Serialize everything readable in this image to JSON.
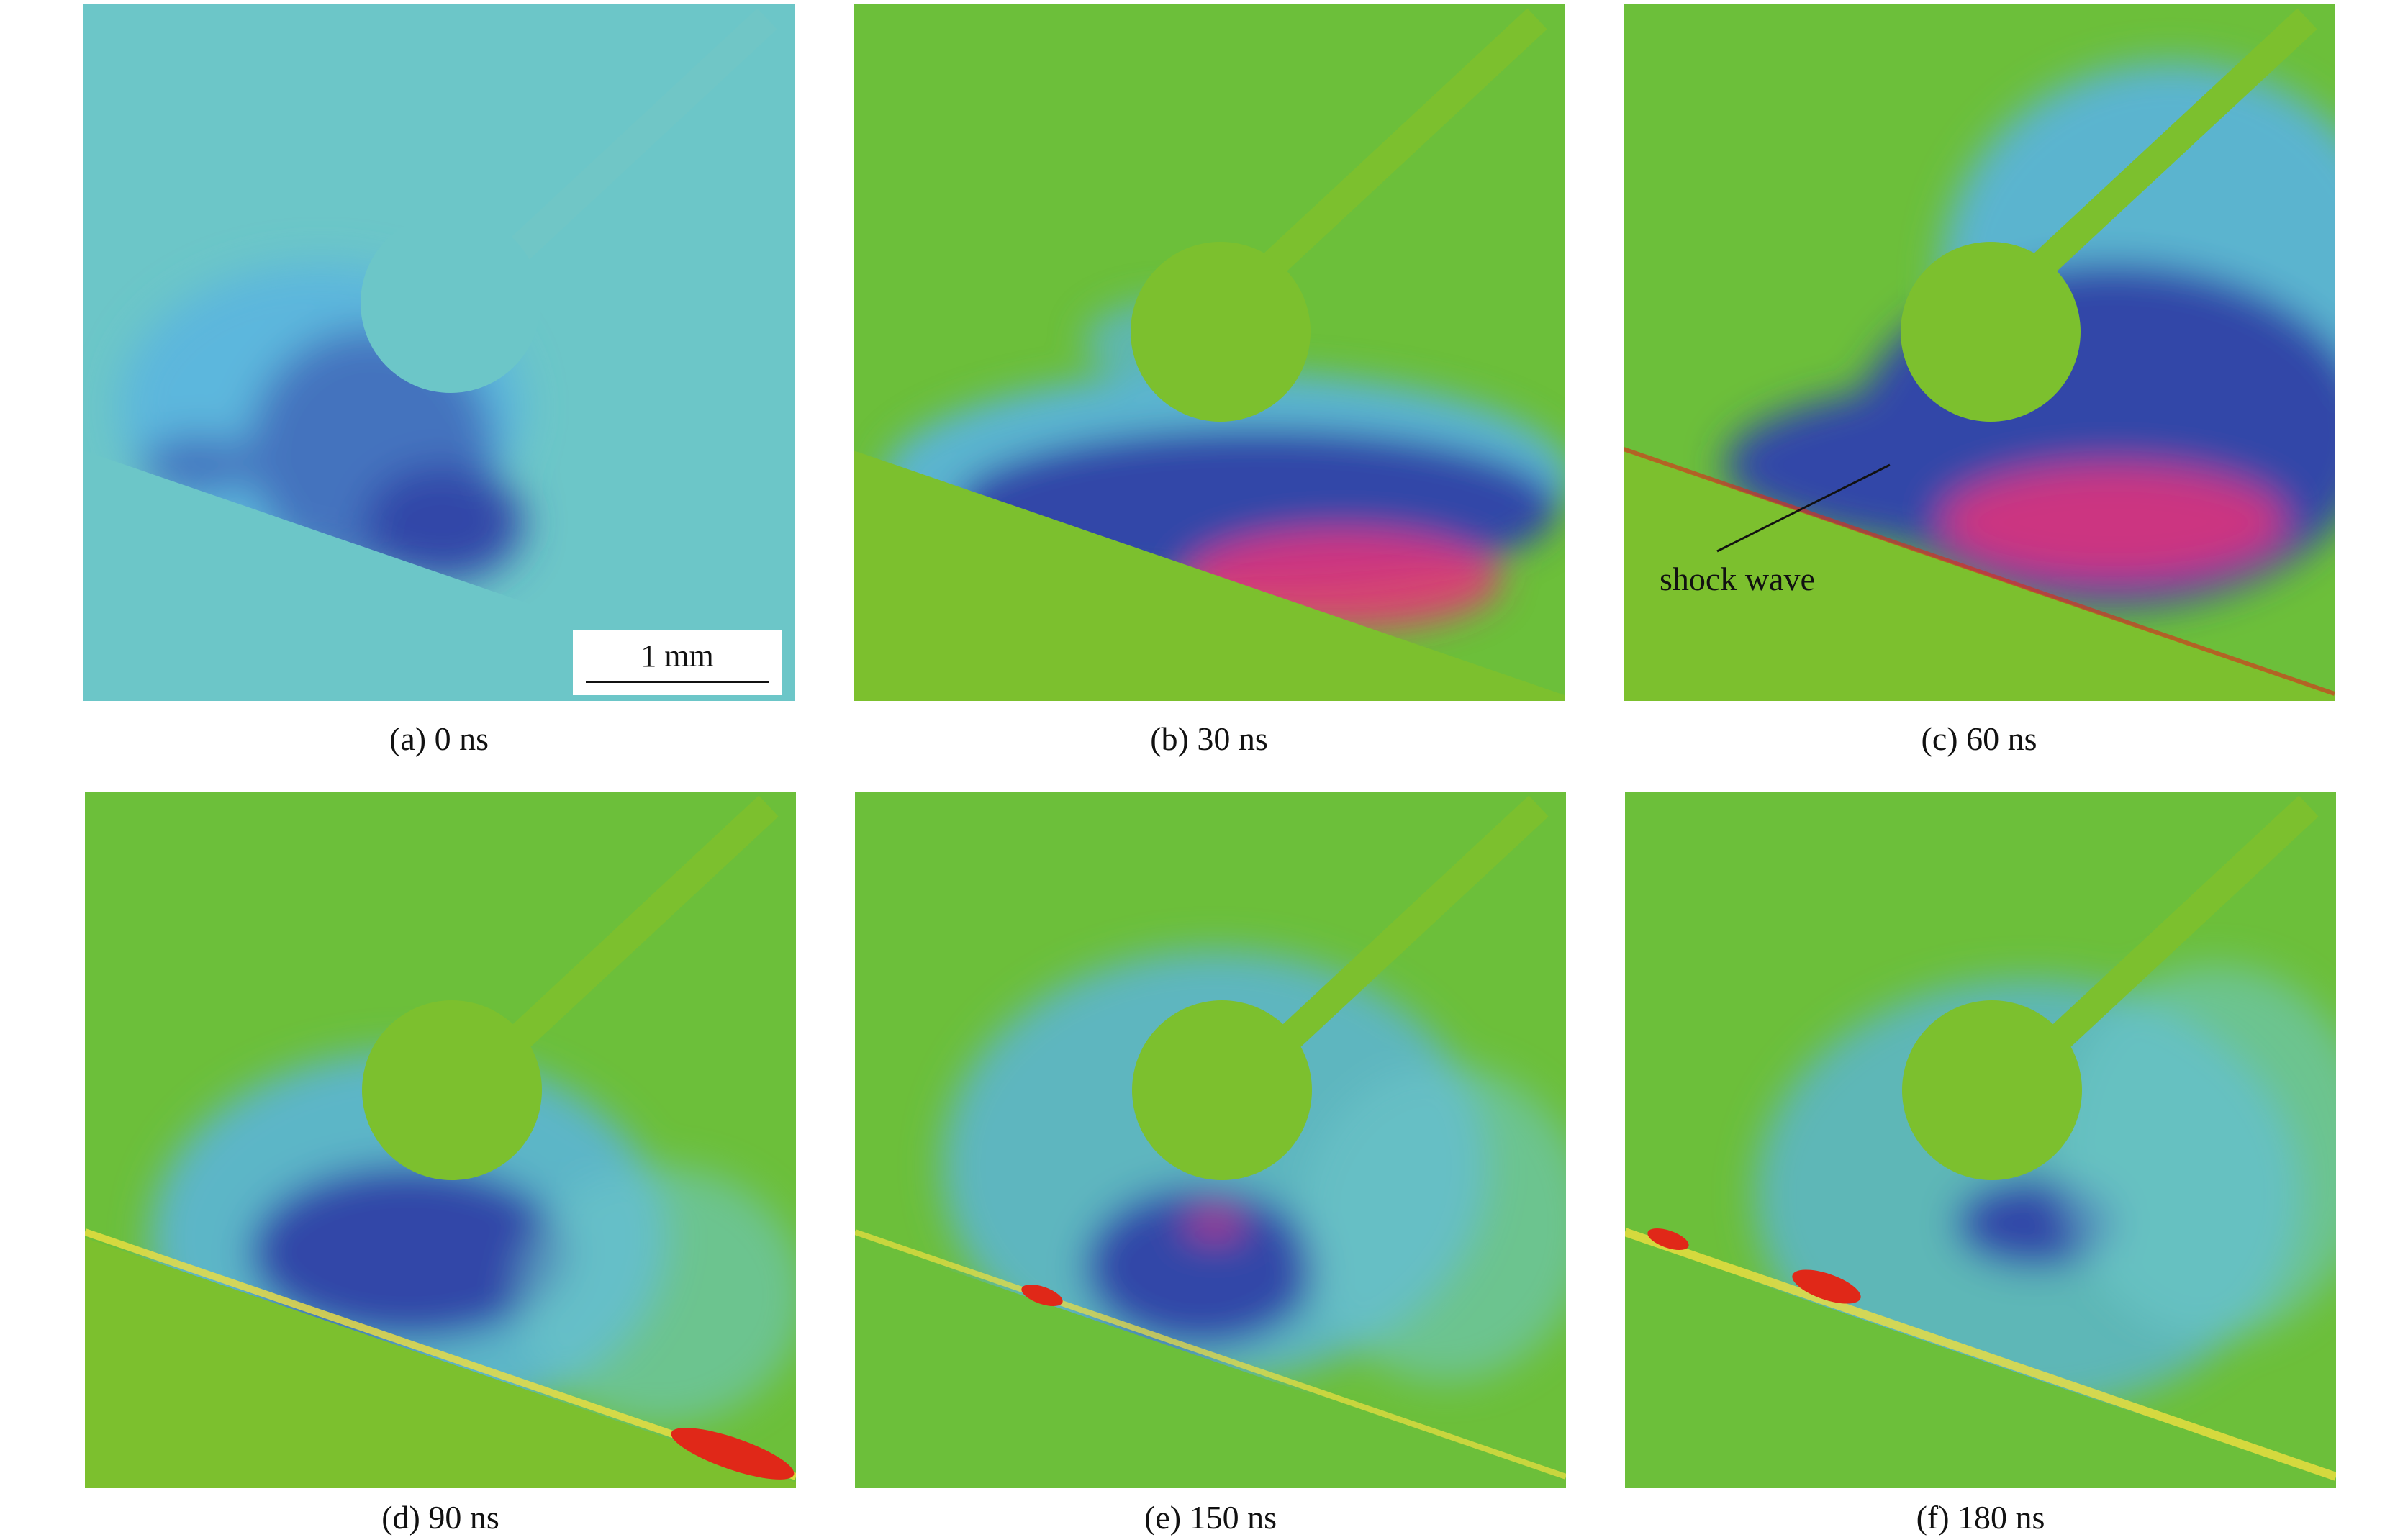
{
  "panels": [
    {
      "caption": "(a) 0 ns"
    },
    {
      "caption": "(b) 30 ns"
    },
    {
      "caption": "(c) 60 ns"
    },
    {
      "caption": "(d) 90 ns"
    },
    {
      "caption": "(e) 150 ns"
    },
    {
      "caption": "(f) 180 ns"
    }
  ],
  "scale_bar": {
    "label": "1 mm"
  },
  "annotation": {
    "label": "shock wave"
  },
  "colors": {
    "background_green": "#6cbf3a",
    "particle_green": "#7cc02e",
    "cyan": "#6cc6c8",
    "light_blue": "#5ab4e0",
    "dark_blue": "#3347a8",
    "magenta": "#e8327a",
    "red": "#e02818",
    "yellow": "#f0e040"
  }
}
